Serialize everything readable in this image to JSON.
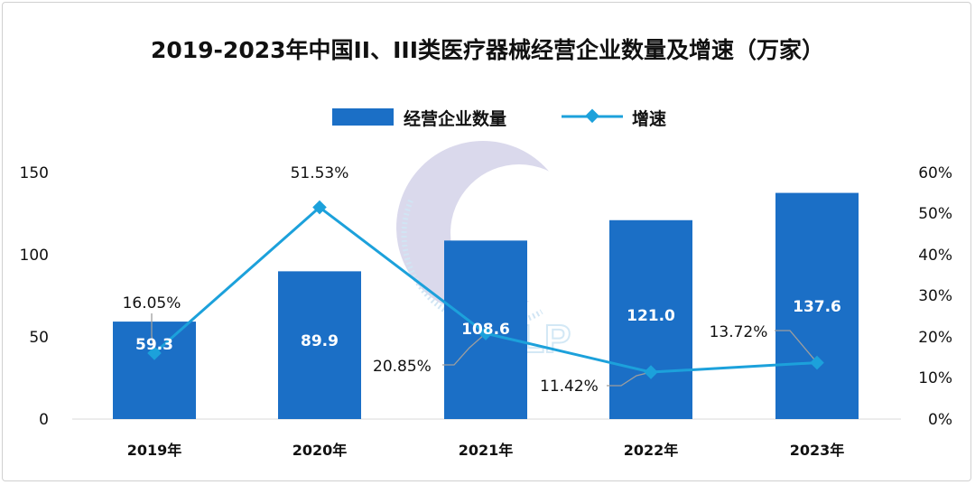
{
  "chart_data": {
    "type": "bar",
    "title": "2019-2023年中国II、III类医疗器械经营企业数量及增速（万家）",
    "categories": [
      "2019年",
      "2020年",
      "2021年",
      "2022年",
      "2023年"
    ],
    "series": [
      {
        "name": "经营企业数量",
        "type": "bar",
        "axis": "left",
        "values": [
          59.3,
          89.9,
          108.6,
          121.0,
          137.6
        ],
        "labels": [
          "59.3",
          "89.9",
          "108.6",
          "121.0",
          "137.6"
        ]
      },
      {
        "name": "增速",
        "type": "line",
        "axis": "right",
        "values": [
          16.05,
          51.53,
          20.85,
          11.42,
          13.72
        ],
        "labels": [
          "16.05%",
          "51.53%",
          "20.85%",
          "11.42%",
          "13.72%"
        ]
      }
    ],
    "y_left": {
      "ylim": [
        0,
        150
      ],
      "ticks": [
        "0",
        "50",
        "100",
        "150"
      ]
    },
    "y_right": {
      "ylim": [
        0,
        60
      ],
      "ticks": [
        "0%",
        "10%",
        "20%",
        "30%",
        "40%",
        "50%",
        "60%"
      ]
    },
    "legend_position": "top-center",
    "grid": false,
    "colors": {
      "bar": "#1b6fc6",
      "line": "#1ca1db",
      "leader": "#9e9e9e",
      "watermark": "#cfcfe6"
    }
  }
}
